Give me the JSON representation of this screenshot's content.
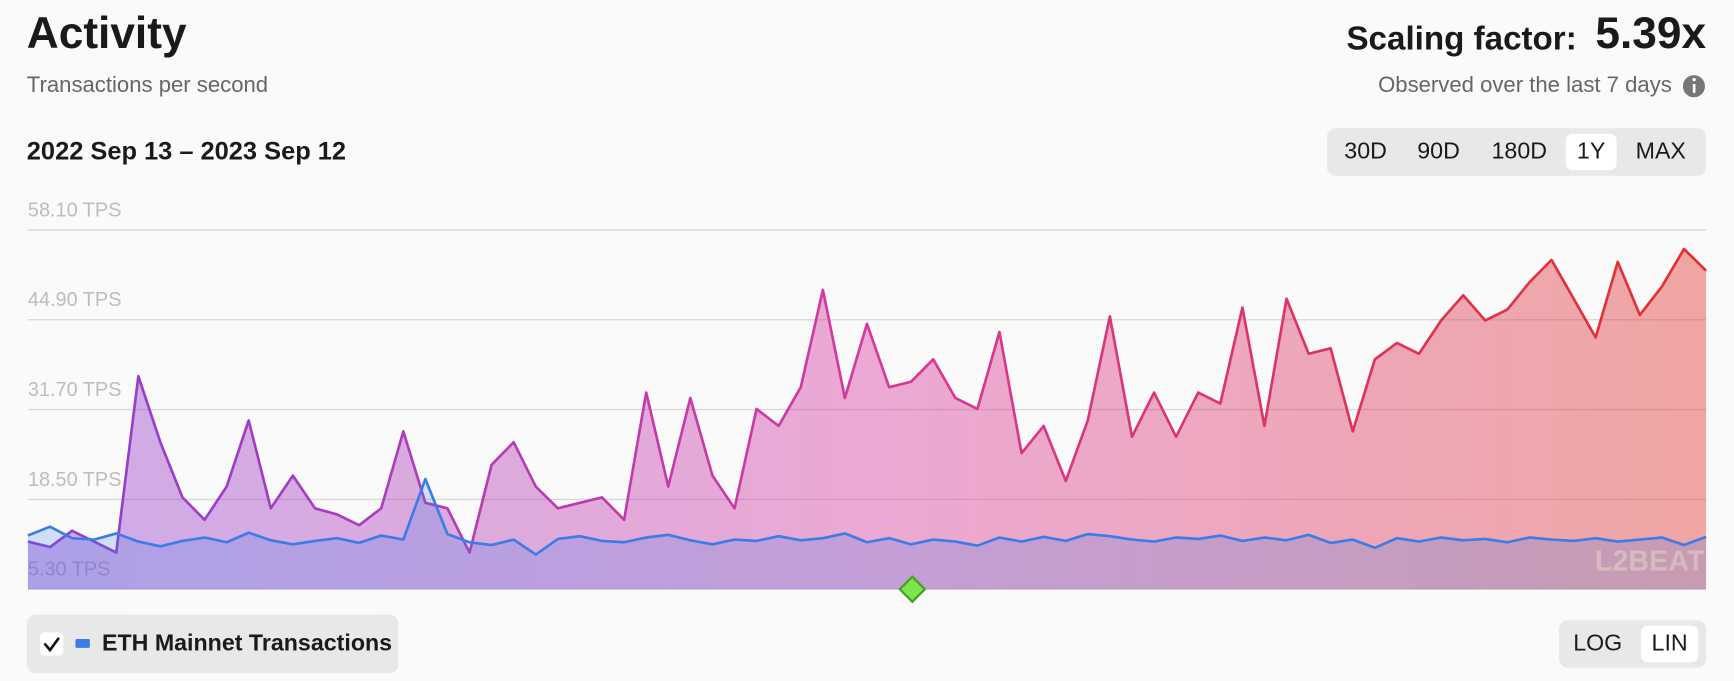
{
  "header": {
    "title": "Activity",
    "subtitle": "Transactions per second",
    "scaling_label": "Scaling factor:",
    "scaling_value": "5.39x",
    "observed": "Observed over the last 7 days"
  },
  "range_label": "2022 Sep 13 – 2023 Sep 12",
  "range_buttons": [
    "30D",
    "90D",
    "180D",
    "1Y",
    "MAX"
  ],
  "selected_range": "1Y",
  "scale_buttons": [
    "LOG",
    "LIN"
  ],
  "selected_scale": "LIN",
  "watermark": "L2BEAT",
  "chart_data": {
    "type": "line",
    "ylim": [
      5.3,
      58.1
    ],
    "yticks": [
      {
        "value": 5.3,
        "label": "5.30 TPS"
      },
      {
        "value": 18.5,
        "label": "18.50 TPS"
      },
      {
        "value": 31.7,
        "label": "31.70 TPS"
      },
      {
        "value": 44.9,
        "label": "44.90 TPS"
      },
      {
        "value": 58.1,
        "label": "58.10 TPS"
      }
    ],
    "grid": true,
    "series": [
      {
        "colors": [
          "#8e3fd0",
          "#d6389e",
          "#e2302a"
        ],
        "values": [
          12.3,
          11.5,
          13.9,
          12.3,
          10.7,
          36.6,
          26.9,
          18.8,
          15.5,
          20.4,
          30.1,
          17.2,
          22,
          17.2,
          16.3,
          14.7,
          17.2,
          28.5,
          18,
          17.2,
          10.7,
          23.6,
          26.9,
          20.4,
          17.2,
          18,
          18.8,
          15.5,
          34.2,
          20.4,
          33.4,
          22,
          17.2,
          31.8,
          29.3,
          35,
          49.3,
          33.4,
          44.3,
          35,
          35.8,
          39.1,
          33.4,
          31.8,
          43.1,
          25.3,
          29.3,
          21.2,
          30.1,
          45.4,
          27.7,
          34.2,
          27.7,
          34.2,
          32.6,
          46.7,
          29.3,
          48,
          39.9,
          40.7,
          28.5,
          39.1,
          41.5,
          39.9,
          44.8,
          48.5,
          44.8,
          46.4,
          50.4,
          53.7,
          48,
          42.3,
          53.4,
          45.6,
          49.8,
          55.3,
          52.1
        ]
      },
      {
        "name": "ETH Mainnet Transactions",
        "color": "#3b7ce8",
        "values": [
          13.2,
          14.5,
          12.8,
          12.6,
          13.5,
          12.3,
          11.6,
          12.4,
          12.9,
          12.2,
          13.6,
          12.5,
          11.9,
          12.4,
          12.8,
          12.1,
          13.2,
          12.6,
          21.5,
          13.4,
          12.2,
          11.8,
          12.6,
          10.4,
          12.7,
          13.1,
          12.4,
          12.2,
          12.9,
          13.3,
          12.5,
          11.9,
          12.6,
          12.4,
          13.1,
          12.5,
          12.8,
          13.5,
          12.2,
          12.8,
          11.9,
          12.6,
          12.3,
          11.7,
          12.9,
          12.3,
          13.0,
          12.4,
          13.4,
          13.1,
          12.6,
          12.3,
          12.9,
          12.7,
          13.2,
          12.4,
          12.9,
          12.5,
          13.3,
          12.1,
          12.6,
          11.4,
          12.8,
          12.3,
          12.9,
          12.5,
          12.7,
          12.2,
          12.9,
          12.6,
          12.4,
          12.8,
          12.3,
          12.6,
          12.9,
          11.8,
          13.0
        ]
      }
    ]
  }
}
